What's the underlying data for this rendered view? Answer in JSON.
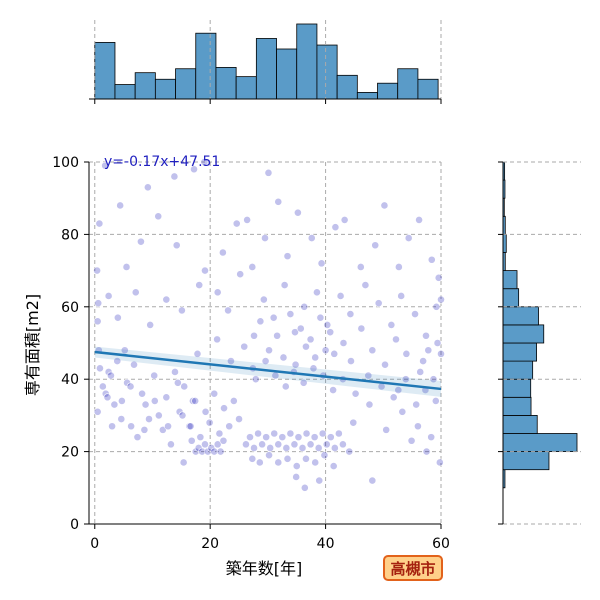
{
  "badge": "高槻市",
  "chart_data": {
    "type": "scatter",
    "xlabel": "築年数[年]",
    "ylabel": "専有面積[m2]",
    "xlim": [
      -1,
      60
    ],
    "ylim": [
      0,
      100
    ],
    "x_ticks": [
      0,
      20,
      40,
      60
    ],
    "y_ticks": [
      0,
      20,
      40,
      60,
      80,
      100
    ],
    "grid": true,
    "regression": {
      "label": "y=-0.17x+47.51",
      "slope": -0.17,
      "intercept": 47.51
    },
    "colors": {
      "points": "#2222bb",
      "regression": "#1f77b4",
      "hist": "#5a9bc8",
      "equation": "#1f1fbf"
    },
    "top_histogram": {
      "bin_edges": [
        0,
        3.5,
        7,
        10.5,
        14,
        17.5,
        21,
        24.5,
        28,
        31.5,
        35,
        38.5,
        42,
        45.5,
        49,
        52.5,
        56,
        59.5
      ],
      "counts": [
        43,
        11,
        20,
        15,
        23,
        50,
        24,
        17,
        46,
        38,
        57,
        41,
        18,
        5,
        12,
        23,
        15
      ]
    },
    "right_histogram": {
      "bin_edges": [
        10,
        15,
        20,
        25,
        30,
        35,
        40,
        45,
        50,
        55,
        60,
        65,
        70,
        75,
        80,
        85,
        90,
        95,
        100
      ],
      "counts": [
        6,
        141,
        227,
        105,
        86,
        85,
        91,
        103,
        125,
        109,
        48,
        43,
        7,
        10,
        7,
        4,
        6,
        5
      ]
    },
    "points": [
      [
        0.5,
        56
      ],
      [
        0.7,
        48
      ],
      [
        0.9,
        43
      ],
      [
        0.5,
        31
      ],
      [
        1.4,
        38
      ],
      [
        1.9,
        36
      ],
      [
        2.4,
        42
      ],
      [
        2.8,
        41
      ],
      [
        3.4,
        33
      ],
      [
        3.9,
        45
      ],
      [
        4.6,
        29
      ],
      [
        5.2,
        48
      ],
      [
        5.6,
        39
      ],
      [
        6.3,
        27
      ],
      [
        6.8,
        44
      ],
      [
        7.4,
        24
      ],
      [
        8.2,
        36
      ],
      [
        8.8,
        33
      ],
      [
        9.4,
        29
      ],
      [
        10.3,
        41
      ],
      [
        11.1,
        30
      ],
      [
        11.8,
        26
      ],
      [
        12.4,
        35
      ],
      [
        13.2,
        22
      ],
      [
        13.9,
        42
      ],
      [
        14.7,
        31
      ],
      [
        15.5,
        38
      ],
      [
        16.4,
        27
      ],
      [
        17.0,
        34
      ],
      [
        17.8,
        47
      ],
      [
        0.6,
        61
      ],
      [
        0.4,
        70
      ],
      [
        0.8,
        83
      ],
      [
        1.8,
        99
      ],
      [
        4.0,
        57
      ],
      [
        7.1,
        64
      ],
      [
        9.6,
        55
      ],
      [
        12.4,
        62
      ],
      [
        15.1,
        59
      ],
      [
        18.1,
        66
      ],
      [
        19.1,
        70
      ],
      [
        2.4,
        63
      ],
      [
        5.5,
        71
      ],
      [
        8.0,
        78
      ],
      [
        11.0,
        85
      ],
      [
        14.2,
        77
      ],
      [
        4.4,
        88
      ],
      [
        9.2,
        93
      ],
      [
        13.8,
        96
      ],
      [
        17.2,
        98
      ],
      [
        21.3,
        64
      ],
      [
        23.1,
        59
      ],
      [
        25.2,
        69
      ],
      [
        27.6,
        52
      ],
      [
        29.3,
        62
      ],
      [
        31.0,
        57
      ],
      [
        32.9,
        66
      ],
      [
        34.7,
        53
      ],
      [
        36.3,
        60
      ],
      [
        38.5,
        64
      ],
      [
        40.3,
        55
      ],
      [
        42.6,
        63
      ],
      [
        44.3,
        58
      ],
      [
        46.9,
        66
      ],
      [
        49.2,
        61
      ],
      [
        51.4,
        55
      ],
      [
        53.1,
        63
      ],
      [
        55.5,
        58
      ],
      [
        57.4,
        52
      ],
      [
        59.2,
        60
      ],
      [
        22.2,
        75
      ],
      [
        24.6,
        83
      ],
      [
        27.3,
        71
      ],
      [
        29.5,
        79
      ],
      [
        31.8,
        89
      ],
      [
        33.4,
        74
      ],
      [
        35.2,
        86
      ],
      [
        37.6,
        79
      ],
      [
        39.3,
        72
      ],
      [
        41.7,
        82
      ],
      [
        43.3,
        84
      ],
      [
        46.1,
        71
      ],
      [
        48.6,
        77
      ],
      [
        50.2,
        88
      ],
      [
        52.7,
        71
      ],
      [
        54.4,
        79
      ],
      [
        56.2,
        84
      ],
      [
        58.4,
        73
      ],
      [
        59.6,
        68
      ],
      [
        30.1,
        97
      ],
      [
        26.4,
        84
      ],
      [
        19.0,
        100
      ],
      [
        21.2,
        51
      ],
      [
        23.6,
        45
      ],
      [
        25.9,
        49
      ],
      [
        27.4,
        43
      ],
      [
        28.7,
        56
      ],
      [
        30.2,
        48
      ],
      [
        31.6,
        52
      ],
      [
        32.7,
        46
      ],
      [
        33.9,
        58
      ],
      [
        34.8,
        44
      ],
      [
        35.7,
        54
      ],
      [
        36.6,
        49
      ],
      [
        37.4,
        51
      ],
      [
        38.2,
        46
      ],
      [
        39.1,
        57
      ],
      [
        40.0,
        48
      ],
      [
        40.8,
        53
      ],
      [
        41.5,
        47
      ],
      [
        43.1,
        50
      ],
      [
        44.4,
        45
      ],
      [
        46.2,
        54
      ],
      [
        48.1,
        48
      ],
      [
        50.3,
        44
      ],
      [
        52.2,
        51
      ],
      [
        54.0,
        47
      ],
      [
        56.4,
        42
      ],
      [
        57.8,
        48
      ],
      [
        59.4,
        50
      ],
      [
        27.9,
        40
      ],
      [
        29.6,
        45
      ],
      [
        31.3,
        41
      ],
      [
        33.1,
        38
      ],
      [
        34.5,
        42
      ],
      [
        36.2,
        39
      ],
      [
        37.9,
        43
      ],
      [
        39.6,
        41
      ],
      [
        41.3,
        37
      ],
      [
        43.0,
        40
      ],
      [
        45.2,
        36
      ],
      [
        47.4,
        41
      ],
      [
        49.7,
        38
      ],
      [
        51.8,
        35
      ],
      [
        53.9,
        40
      ],
      [
        55.7,
        33
      ],
      [
        57.3,
        37
      ],
      [
        59.1,
        34
      ],
      [
        44.8,
        28
      ],
      [
        47.6,
        33
      ],
      [
        50.5,
        26
      ],
      [
        53.3,
        31
      ],
      [
        56.0,
        27
      ],
      [
        58.3,
        24
      ],
      [
        15.2,
        30
      ],
      [
        16.6,
        27
      ],
      [
        17.4,
        34
      ],
      [
        18.3,
        24
      ],
      [
        19.2,
        31
      ],
      [
        19.9,
        28
      ],
      [
        20.7,
        36
      ],
      [
        21.6,
        25
      ],
      [
        22.4,
        32
      ],
      [
        23.3,
        27
      ],
      [
        24.1,
        34
      ],
      [
        25.0,
        29
      ],
      [
        17.5,
        20
      ],
      [
        18.0,
        21
      ],
      [
        18.6,
        20
      ],
      [
        19.1,
        22
      ],
      [
        19.6,
        20
      ],
      [
        20.2,
        21
      ],
      [
        20.7,
        20
      ],
      [
        21.3,
        22
      ],
      [
        21.8,
        20
      ],
      [
        16.8,
        23
      ],
      [
        22.3,
        23
      ],
      [
        26.2,
        22
      ],
      [
        26.9,
        24
      ],
      [
        27.6,
        21
      ],
      [
        28.3,
        25
      ],
      [
        29.0,
        22
      ],
      [
        29.7,
        24
      ],
      [
        30.4,
        21
      ],
      [
        31.1,
        25
      ],
      [
        31.8,
        22
      ],
      [
        32.5,
        24
      ],
      [
        33.2,
        21
      ],
      [
        33.9,
        25
      ],
      [
        34.6,
        22
      ],
      [
        35.3,
        24
      ],
      [
        36.0,
        21
      ],
      [
        36.7,
        25
      ],
      [
        37.4,
        22
      ],
      [
        38.1,
        24
      ],
      [
        38.8,
        21
      ],
      [
        39.5,
        25
      ],
      [
        40.2,
        22
      ],
      [
        40.9,
        24
      ],
      [
        41.6,
        21
      ],
      [
        42.3,
        25
      ],
      [
        43.0,
        22
      ],
      [
        27.3,
        18
      ],
      [
        28.6,
        17
      ],
      [
        30.2,
        19
      ],
      [
        31.8,
        17
      ],
      [
        33.4,
        18
      ],
      [
        35.0,
        16
      ],
      [
        36.6,
        18
      ],
      [
        38.2,
        17
      ],
      [
        39.8,
        19
      ],
      [
        41.4,
        16
      ],
      [
        34.9,
        13
      ],
      [
        36.4,
        10
      ],
      [
        38.9,
        12
      ],
      [
        44.1,
        20
      ],
      [
        15.4,
        17
      ],
      [
        48.1,
        12
      ],
      [
        2.2,
        35
      ],
      [
        3.0,
        27
      ],
      [
        4.7,
        34
      ],
      [
        6.2,
        38
      ],
      [
        8.6,
        26
      ],
      [
        10.4,
        34
      ],
      [
        12.7,
        27
      ],
      [
        14.4,
        39
      ],
      [
        60.0,
        47
      ],
      [
        58.7,
        40
      ],
      [
        56.9,
        45
      ],
      [
        60.0,
        62
      ],
      [
        59.8,
        17
      ],
      [
        57.5,
        20
      ],
      [
        54.9,
        23
      ],
      [
        52.6,
        37
      ]
    ]
  }
}
